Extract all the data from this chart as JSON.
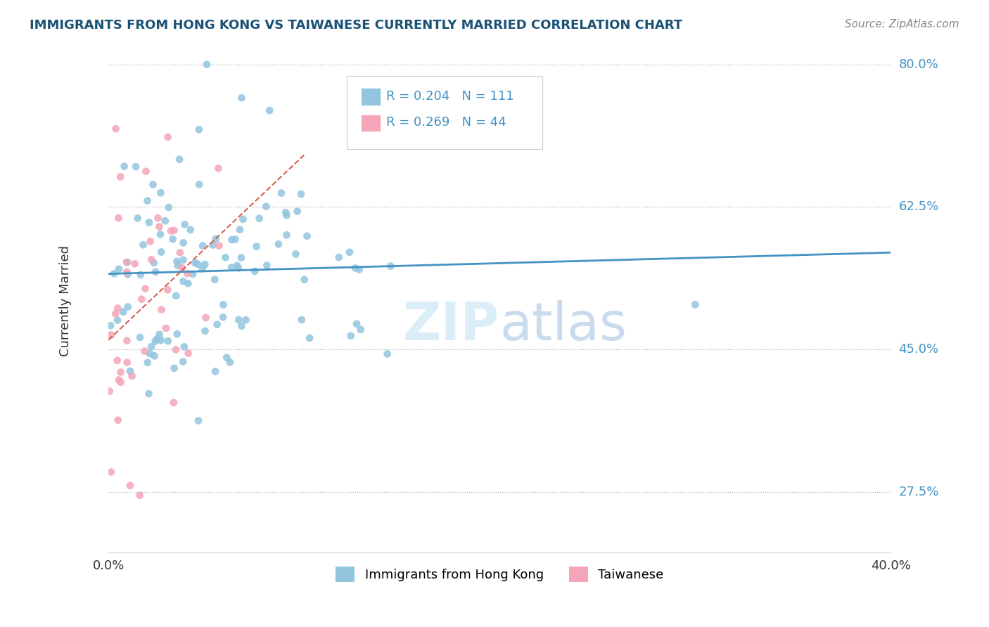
{
  "title": "IMMIGRANTS FROM HONG KONG VS TAIWANESE CURRENTLY MARRIED CORRELATION CHART",
  "source": "Source: ZipAtlas.com",
  "ylabel_label": "Currently Married",
  "legend_hk_R": "R = 0.204",
  "legend_hk_N": "N = 111",
  "legend_tw_R": "R = 0.269",
  "legend_tw_N": "N = 44",
  "hk_color": "#92c5de",
  "tw_color": "#f4a6b8",
  "trend_hk_color": "#4393c3",
  "trend_tw_color": "#d6604d",
  "x_min": 0.0,
  "x_max": 0.4,
  "y_min": 0.2,
  "y_max": 0.82,
  "y_ticks": [
    0.275,
    0.45,
    0.625,
    0.8
  ],
  "y_tick_labels": [
    "27.5%",
    "45.0%",
    "62.5%",
    "80.0%"
  ],
  "x_tick_labels": [
    "0.0%",
    "40.0%"
  ],
  "watermark_zip": "ZIP",
  "watermark_atlas": "atlas",
  "legend_bottom_hk": "Immigrants from Hong Kong",
  "legend_bottom_tw": "Taiwanese"
}
